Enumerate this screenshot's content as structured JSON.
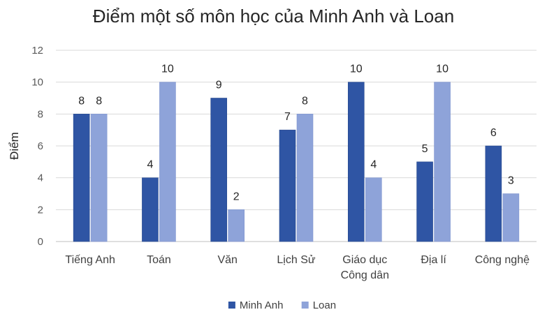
{
  "chart_data": {
    "type": "bar",
    "title": "Điểm một số môn học của Minh Anh và Loan",
    "ylabel": "Điểm",
    "xlabel": "",
    "ylim": [
      0,
      12
    ],
    "yticks": [
      0,
      2,
      4,
      6,
      8,
      10,
      12
    ],
    "grid": true,
    "legend_position": "bottom",
    "categories": [
      [
        "Tiếng Anh"
      ],
      [
        "Toán"
      ],
      [
        "Văn"
      ],
      [
        "Lịch Sử"
      ],
      [
        "Giáo dục",
        "Công dân"
      ],
      [
        "Địa lí"
      ],
      [
        "Công nghệ"
      ]
    ],
    "series": [
      {
        "name": "Minh Anh",
        "color": "#2f55a4",
        "values": [
          8,
          4,
          9,
          7,
          10,
          5,
          6
        ]
      },
      {
        "name": "Loan",
        "color": "#8ea3d9",
        "values": [
          8,
          10,
          2,
          8,
          4,
          10,
          3
        ]
      }
    ]
  }
}
